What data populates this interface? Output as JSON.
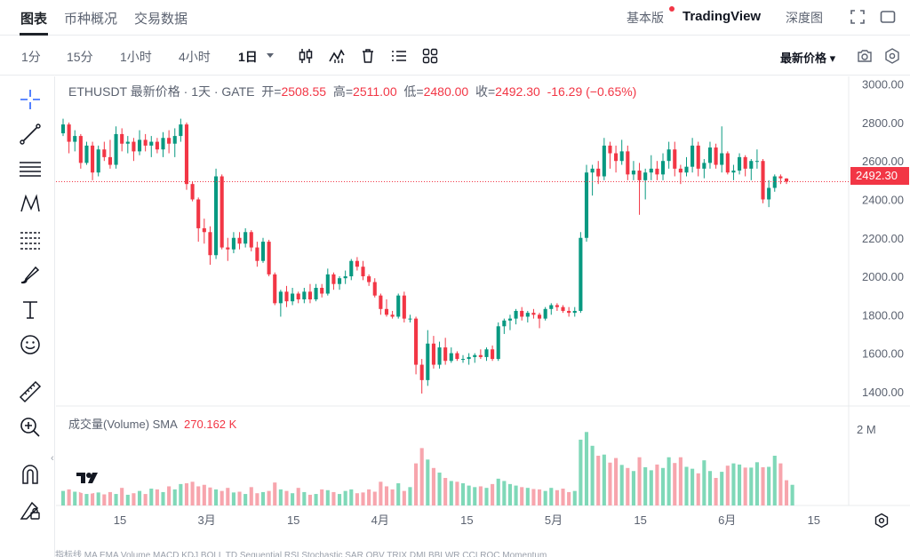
{
  "tabs": [
    {
      "label": "图表",
      "active": true
    },
    {
      "label": "币种概况",
      "active": false
    },
    {
      "label": "交易数据",
      "active": false
    }
  ],
  "top_right": {
    "basic": "基本版",
    "tradingview": "TradingView",
    "depth": "深度图"
  },
  "timeframes": [
    {
      "label": "1分",
      "active": false
    },
    {
      "label": "15分",
      "active": false
    },
    {
      "label": "1小时",
      "active": false
    },
    {
      "label": "4小时",
      "active": false
    },
    {
      "label": "1日",
      "active": true
    }
  ],
  "price_type": "最新价格",
  "legend": {
    "symbol": "ETHUSDT 最新价格 · 1天 · GATE",
    "open_label": "开=",
    "open": "2508.55",
    "high_label": "高=",
    "high": "2511.00",
    "low_label": "低=",
    "low": "2480.00",
    "close_label": "收=",
    "close": "2492.30",
    "change": "-16.29 (−0.65%)"
  },
  "volume_legend": {
    "label": "成交量(Volume) SMA",
    "value": "270.162 K"
  },
  "last_price": "2492.30",
  "bottom_strip": "指标线   MA   EMA   Volume   MACD   KDJ   BOLL   TD Sequential   RSI   Stochastic   SAR   OBV   TRIX   DMI   BBI   WR   CCI   ROC   Momentum",
  "colors": {
    "up": "#089981",
    "down": "#f23645",
    "up_vol": "#7fd8b8",
    "down_vol": "#f7a5ad"
  },
  "chart_data": {
    "type": "candlestick",
    "x_tick_labels": [
      "15",
      "3月",
      "15",
      "4月",
      "15",
      "5月",
      "15",
      "6月",
      "15"
    ],
    "y_tick_labels": [
      "3000.00",
      "2800.00",
      "2600.00",
      "2400.00",
      "2200.00",
      "2000.00",
      "1800.00",
      "1600.00",
      "1400.00"
    ],
    "y_range": [
      1330,
      3040
    ],
    "volume_tick_label": "2 M",
    "volume_range": [
      0,
      2600
    ],
    "current_price": 2492.3,
    "ohlc": [
      [
        2744,
        2820,
        2730,
        2790
      ],
      [
        2790,
        2800,
        2640,
        2700
      ],
      [
        2700,
        2760,
        2650,
        2730
      ],
      [
        2730,
        2740,
        2560,
        2590
      ],
      [
        2590,
        2700,
        2580,
        2680
      ],
      [
        2680,
        2700,
        2500,
        2540
      ],
      [
        2540,
        2680,
        2520,
        2660
      ],
      [
        2660,
        2700,
        2600,
        2620
      ],
      [
        2620,
        2710,
        2560,
        2580
      ],
      [
        2580,
        2780,
        2560,
        2740
      ],
      [
        2740,
        2770,
        2650,
        2690
      ],
      [
        2690,
        2730,
        2640,
        2700
      ],
      [
        2700,
        2720,
        2600,
        2650
      ],
      [
        2650,
        2760,
        2630,
        2710
      ],
      [
        2710,
        2740,
        2650,
        2680
      ],
      [
        2680,
        2730,
        2620,
        2700
      ],
      [
        2700,
        2720,
        2640,
        2660
      ],
      [
        2660,
        2750,
        2620,
        2720
      ],
      [
        2720,
        2760,
        2640,
        2690
      ],
      [
        2690,
        2770,
        2620,
        2730
      ],
      [
        2730,
        2820,
        2700,
        2790
      ],
      [
        2790,
        2800,
        2450,
        2480
      ],
      [
        2480,
        2490,
        2390,
        2400
      ],
      [
        2400,
        2410,
        2180,
        2250
      ],
      [
        2250,
        2300,
        2170,
        2230
      ],
      [
        2230,
        2260,
        2060,
        2110
      ],
      [
        2110,
        2560,
        2090,
        2520
      ],
      [
        2520,
        2530,
        2140,
        2150
      ],
      [
        2150,
        2200,
        2080,
        2140
      ],
      [
        2140,
        2230,
        2120,
        2200
      ],
      [
        2200,
        2230,
        2140,
        2170
      ],
      [
        2170,
        2250,
        2150,
        2230
      ],
      [
        2230,
        2240,
        2130,
        2150
      ],
      [
        2150,
        2180,
        2050,
        2080
      ],
      [
        2080,
        2200,
        2070,
        2180
      ],
      [
        2180,
        2190,
        2000,
        2010
      ],
      [
        2010,
        2020,
        1850,
        1860
      ],
      [
        1860,
        1930,
        1790,
        1920
      ],
      [
        1920,
        1950,
        1840,
        1870
      ],
      [
        1870,
        1940,
        1850,
        1910
      ],
      [
        1910,
        1920,
        1860,
        1880
      ],
      [
        1880,
        1940,
        1860,
        1920
      ],
      [
        1920,
        1960,
        1860,
        1880
      ],
      [
        1880,
        1960,
        1870,
        1940
      ],
      [
        1940,
        1960,
        1890,
        1910
      ],
      [
        1910,
        2040,
        1900,
        2010
      ],
      [
        2010,
        2020,
        1930,
        1960
      ],
      [
        1960,
        2000,
        1930,
        1990
      ],
      [
        1990,
        2030,
        1960,
        2000
      ],
      [
        2000,
        2090,
        1980,
        2080
      ],
      [
        2080,
        2100,
        2030,
        2050
      ],
      [
        2050,
        2080,
        1980,
        2000
      ],
      [
        2000,
        2010,
        1950,
        1970
      ],
      [
        1970,
        1990,
        1890,
        1900
      ],
      [
        1900,
        1910,
        1800,
        1830
      ],
      [
        1830,
        1880,
        1790,
        1800
      ],
      [
        1800,
        1820,
        1780,
        1790
      ],
      [
        1790,
        1910,
        1780,
        1900
      ],
      [
        1900,
        1920,
        1760,
        1780
      ],
      [
        1780,
        1800,
        1760,
        1780
      ],
      [
        1780,
        1790,
        1490,
        1540
      ],
      [
        1540,
        1570,
        1390,
        1460
      ],
      [
        1460,
        1720,
        1430,
        1650
      ],
      [
        1650,
        1690,
        1520,
        1540
      ],
      [
        1540,
        1660,
        1520,
        1630
      ],
      [
        1630,
        1680,
        1540,
        1560
      ],
      [
        1560,
        1630,
        1550,
        1600
      ],
      [
        1600,
        1610,
        1560,
        1570
      ],
      [
        1570,
        1590,
        1550,
        1570
      ],
      [
        1570,
        1600,
        1540,
        1580
      ],
      [
        1580,
        1600,
        1550,
        1590
      ],
      [
        1590,
        1620,
        1570,
        1580
      ],
      [
        1580,
        1630,
        1560,
        1620
      ],
      [
        1620,
        1640,
        1560,
        1570
      ],
      [
        1570,
        1760,
        1560,
        1740
      ],
      [
        1740,
        1780,
        1700,
        1770
      ],
      [
        1770,
        1800,
        1720,
        1780
      ],
      [
        1780,
        1830,
        1750,
        1820
      ],
      [
        1820,
        1840,
        1770,
        1790
      ],
      [
        1790,
        1820,
        1760,
        1810
      ],
      [
        1810,
        1830,
        1780,
        1800
      ],
      [
        1800,
        1810,
        1730,
        1780
      ],
      [
        1780,
        1840,
        1770,
        1830
      ],
      [
        1830,
        1860,
        1800,
        1850
      ],
      [
        1850,
        1860,
        1820,
        1840
      ],
      [
        1840,
        1850,
        1810,
        1820
      ],
      [
        1820,
        1840,
        1790,
        1810
      ],
      [
        1810,
        1840,
        1790,
        1820
      ],
      [
        1820,
        2230,
        1810,
        2200
      ],
      [
        2200,
        2580,
        2180,
        2540
      ],
      [
        2540,
        2580,
        2420,
        2560
      ],
      [
        2560,
        2600,
        2480,
        2520
      ],
      [
        2520,
        2720,
        2500,
        2680
      ],
      [
        2680,
        2700,
        2560,
        2640
      ],
      [
        2640,
        2680,
        2540,
        2600
      ],
      [
        2600,
        2710,
        2580,
        2650
      ],
      [
        2650,
        2680,
        2500,
        2530
      ],
      [
        2530,
        2600,
        2500,
        2550
      ],
      [
        2550,
        2590,
        2320,
        2500
      ],
      [
        2500,
        2560,
        2400,
        2540
      ],
      [
        2540,
        2630,
        2500,
        2560
      ],
      [
        2560,
        2600,
        2500,
        2530
      ],
      [
        2530,
        2640,
        2500,
        2600
      ],
      [
        2600,
        2700,
        2560,
        2660
      ],
      [
        2660,
        2700,
        2520,
        2560
      ],
      [
        2560,
        2580,
        2480,
        2540
      ],
      [
        2540,
        2620,
        2520,
        2570
      ],
      [
        2570,
        2720,
        2540,
        2680
      ],
      [
        2680,
        2700,
        2520,
        2560
      ],
      [
        2560,
        2610,
        2510,
        2590
      ],
      [
        2590,
        2700,
        2560,
        2670
      ],
      [
        2670,
        2690,
        2560,
        2580
      ],
      [
        2580,
        2780,
        2540,
        2640
      ],
      [
        2640,
        2650,
        2530,
        2540
      ],
      [
        2540,
        2580,
        2500,
        2550
      ],
      [
        2550,
        2640,
        2530,
        2620
      ],
      [
        2620,
        2630,
        2520,
        2560
      ],
      [
        2560,
        2610,
        2500,
        2600
      ],
      [
        2600,
        2660,
        2560,
        2600
      ],
      [
        2600,
        2610,
        2380,
        2400
      ],
      [
        2400,
        2500,
        2360,
        2460
      ],
      [
        2460,
        2530,
        2440,
        2520
      ],
      [
        2520,
        2530,
        2480,
        2510
      ],
      [
        2508.55,
        2511,
        2480,
        2492.3
      ]
    ],
    "volume": [
      380,
      420,
      360,
      450,
      300,
      520,
      340,
      290,
      350,
      300,
      460,
      280,
      320,
      380,
      300,
      440,
      420,
      350,
      500,
      420,
      560,
      580,
      620,
      500,
      540,
      470,
      420,
      380,
      460,
      340,
      360,
      300,
      480,
      320,
      350,
      380,
      600,
      420,
      380,
      320,
      460,
      350,
      280,
      300,
      420,
      400,
      350,
      300,
      380,
      420,
      320,
      340,
      420,
      360,
      620,
      500,
      420,
      580,
      380,
      480,
      1100,
      1500,
      1200,
      980,
      860,
      720,
      640,
      620,
      580,
      520,
      480,
      500,
      460,
      560,
      700,
      640,
      560,
      520,
      480,
      460,
      430,
      420,
      380,
      460,
      400,
      440,
      350,
      380,
      1720,
      1920,
      1560,
      1300,
      1330,
      1120,
      1240,
      1060,
      980,
      900,
      1260,
      1000,
      920,
      1070,
      980,
      1260,
      1110,
      1260,
      1010,
      960,
      840,
      1180,
      900,
      720,
      880,
      1040,
      1100,
      1070,
      990,
      990,
      1130,
      1000,
      1010,
      1300,
      1100,
      660,
      540
    ]
  }
}
